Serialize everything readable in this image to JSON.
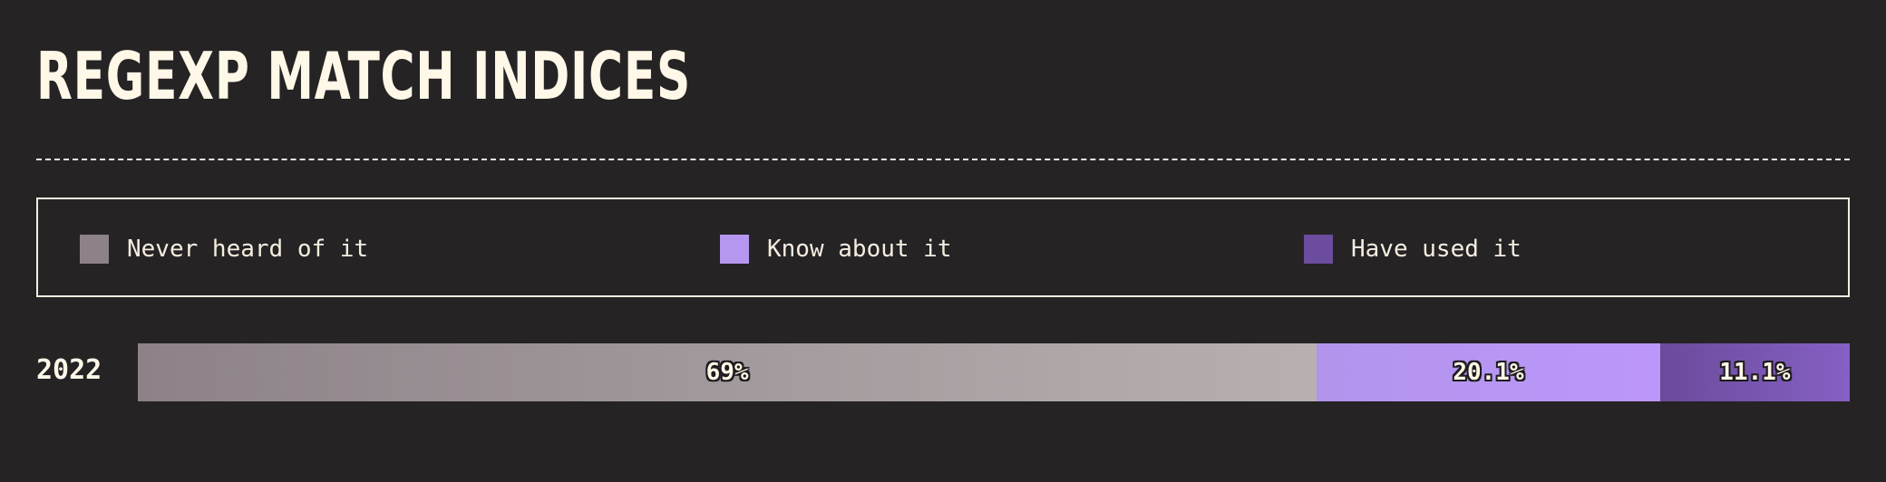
{
  "title": "REGEXP MATCH INDICES",
  "legend": [
    {
      "label": "Never heard of it",
      "color": "#8c8288",
      "offset": 0
    },
    {
      "label": "Know about it",
      "color": "#b697f0",
      "offset": 706
    },
    {
      "label": "Have used it",
      "color": "#6b4c9e",
      "offset": 1350
    }
  ],
  "chart_data": {
    "type": "bar",
    "orientation": "horizontal",
    "stacked": true,
    "categories": [
      "2022"
    ],
    "series": [
      {
        "name": "Never heard of it",
        "values": [
          69
        ],
        "label": "69%",
        "color_start": "#8c8288",
        "color_end": "#b8b0b0"
      },
      {
        "name": "Know about it",
        "values": [
          20.1
        ],
        "label": "20.1%",
        "color_start": "#b294ec",
        "color_end": "#bc97fa"
      },
      {
        "name": "Have used it",
        "values": [
          11.1
        ],
        "label": "11.1%",
        "color_start": "#6a4b9b",
        "color_end": "#8660c4"
      }
    ],
    "total": 100.2
  }
}
